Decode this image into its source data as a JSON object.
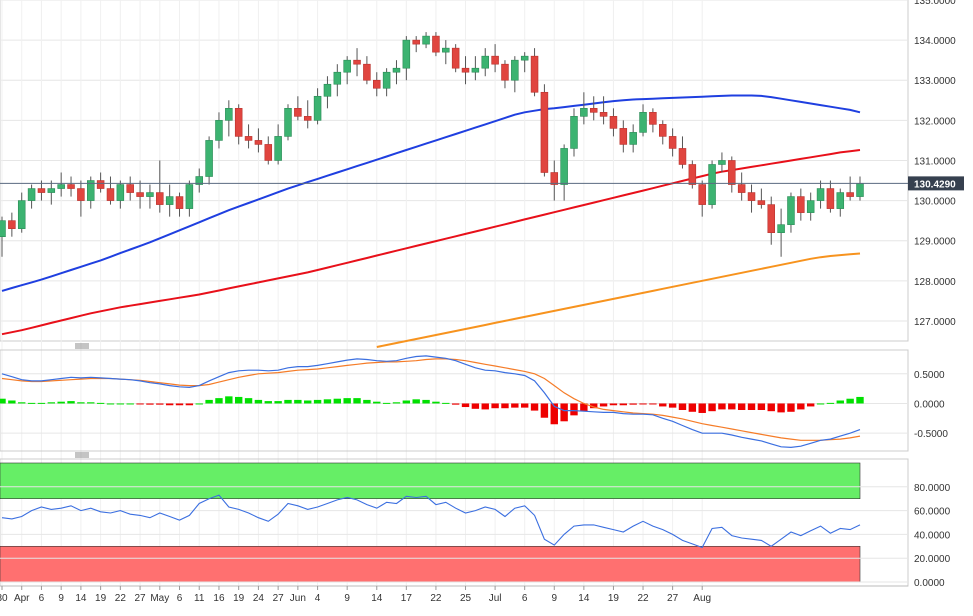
{
  "colors": {
    "bull": "#3cb371",
    "bear": "#e0453f",
    "wick": "#555555",
    "sma50": "#1f3fe0",
    "sma100": "#e8101a",
    "sma200": "#f7931e",
    "macd_line": "#3b6fe0",
    "macd_signal": "#f57c28",
    "hist_pos": "#00e000",
    "hist_neg": "#ee0000",
    "rsi_line": "#3b6fe0",
    "overbought": "#66ee66",
    "oversold": "#ff7070",
    "grid": "#e6e6e6",
    "price_badge": "#36404f"
  },
  "chart_data": [
    {
      "type": "candlestick",
      "name": "price",
      "ylim": [
        126.5,
        135.0
      ],
      "grid": true,
      "y_ticks": [
        "135.0000",
        "134.0000",
        "133.0000",
        "132.0000",
        "131.0000",
        "130.0000",
        "129.0000",
        "128.0000",
        "127.0000"
      ],
      "last_price": 130.429,
      "last_price_label": "130.4290",
      "candles": [
        [
          129.1,
          129.6,
          128.6,
          129.5
        ],
        [
          129.5,
          129.7,
          129.1,
          129.3
        ],
        [
          129.3,
          130.2,
          129.2,
          130.0
        ],
        [
          130.0,
          130.4,
          129.8,
          130.3
        ],
        [
          130.3,
          130.5,
          130.0,
          130.2
        ],
        [
          130.2,
          130.5,
          129.9,
          130.3
        ],
        [
          130.3,
          130.7,
          130.1,
          130.4
        ],
        [
          130.4,
          130.6,
          130.1,
          130.3
        ],
        [
          130.3,
          130.5,
          129.6,
          130.0
        ],
        [
          130.0,
          130.6,
          129.8,
          130.5
        ],
        [
          130.5,
          130.7,
          130.2,
          130.3
        ],
        [
          130.3,
          130.6,
          129.9,
          130.0
        ],
        [
          130.0,
          130.5,
          129.8,
          130.4
        ],
        [
          130.4,
          130.6,
          130.0,
          130.2
        ],
        [
          130.2,
          130.5,
          129.8,
          130.1
        ],
        [
          130.1,
          130.4,
          129.8,
          130.2
        ],
        [
          130.2,
          131.0,
          129.7,
          129.9
        ],
        [
          129.9,
          130.4,
          129.6,
          130.1
        ],
        [
          130.1,
          130.2,
          129.6,
          129.8
        ],
        [
          129.8,
          130.5,
          129.6,
          130.4
        ],
        [
          130.4,
          130.8,
          130.2,
          130.6
        ],
        [
          130.6,
          131.6,
          130.4,
          131.5
        ],
        [
          131.5,
          132.2,
          131.3,
          132.0
        ],
        [
          132.0,
          132.5,
          131.6,
          132.3
        ],
        [
          132.3,
          132.4,
          131.4,
          131.6
        ],
        [
          131.6,
          131.9,
          131.3,
          131.5
        ],
        [
          131.5,
          131.8,
          131.2,
          131.4
        ],
        [
          131.4,
          131.6,
          130.9,
          131.0
        ],
        [
          131.0,
          131.9,
          130.9,
          131.6
        ],
        [
          131.6,
          132.4,
          131.5,
          132.3
        ],
        [
          132.3,
          132.6,
          132.0,
          132.1
        ],
        [
          132.1,
          132.5,
          131.8,
          132.0
        ],
        [
          132.0,
          132.8,
          131.9,
          132.6
        ],
        [
          132.6,
          133.1,
          132.3,
          132.9
        ],
        [
          132.9,
          133.4,
          132.6,
          133.2
        ],
        [
          133.2,
          133.6,
          132.9,
          133.5
        ],
        [
          133.5,
          133.8,
          133.1,
          133.4
        ],
        [
          133.4,
          133.6,
          132.9,
          133.0
        ],
        [
          133.0,
          133.2,
          132.6,
          132.8
        ],
        [
          132.8,
          133.3,
          132.6,
          133.2
        ],
        [
          133.2,
          133.5,
          132.9,
          133.3
        ],
        [
          133.3,
          134.1,
          133.0,
          134.0
        ],
        [
          134.0,
          134.1,
          133.7,
          133.9
        ],
        [
          133.9,
          134.2,
          133.8,
          134.1
        ],
        [
          134.1,
          134.2,
          133.6,
          133.7
        ],
        [
          133.7,
          134.0,
          133.4,
          133.8
        ],
        [
          133.8,
          133.9,
          133.2,
          133.3
        ],
        [
          133.3,
          133.6,
          132.9,
          133.2
        ],
        [
          133.2,
          133.6,
          133.0,
          133.3
        ],
        [
          133.3,
          133.8,
          133.1,
          133.6
        ],
        [
          133.6,
          133.9,
          133.2,
          133.4
        ],
        [
          133.4,
          133.5,
          132.8,
          133.0
        ],
        [
          133.0,
          133.6,
          132.7,
          133.5
        ],
        [
          133.5,
          133.7,
          133.2,
          133.6
        ],
        [
          133.6,
          133.8,
          132.6,
          132.7
        ],
        [
          132.7,
          132.9,
          130.6,
          130.7
        ],
        [
          130.7,
          131.0,
          130.0,
          130.4
        ],
        [
          130.4,
          131.4,
          130.0,
          131.3
        ],
        [
          131.3,
          132.3,
          131.1,
          132.1
        ],
        [
          132.1,
          132.7,
          131.9,
          132.3
        ],
        [
          132.3,
          132.6,
          132.0,
          132.2
        ],
        [
          132.2,
          132.6,
          131.9,
          132.1
        ],
        [
          132.1,
          132.3,
          131.6,
          131.8
        ],
        [
          131.8,
          132.0,
          131.2,
          131.4
        ],
        [
          131.4,
          131.9,
          131.2,
          131.7
        ],
        [
          131.7,
          132.4,
          131.6,
          132.2
        ],
        [
          132.2,
          132.3,
          131.7,
          131.9
        ],
        [
          131.9,
          132.0,
          131.4,
          131.6
        ],
        [
          131.6,
          131.8,
          131.1,
          131.3
        ],
        [
          131.3,
          131.6,
          130.8,
          130.9
        ],
        [
          130.9,
          131.0,
          130.3,
          130.4
        ],
        [
          130.4,
          130.5,
          129.6,
          129.9
        ],
        [
          129.9,
          131.0,
          129.8,
          130.9
        ],
        [
          130.9,
          131.2,
          130.7,
          131.0
        ],
        [
          131.0,
          131.1,
          130.2,
          130.4
        ],
        [
          130.4,
          130.7,
          130.0,
          130.2
        ],
        [
          130.2,
          130.4,
          129.7,
          130.0
        ],
        [
          130.0,
          130.3,
          129.8,
          129.9
        ],
        [
          129.9,
          130.1,
          128.9,
          129.2
        ],
        [
          129.2,
          129.8,
          128.6,
          129.4
        ],
        [
          129.4,
          130.2,
          129.2,
          130.1
        ],
        [
          130.1,
          130.3,
          129.5,
          129.7
        ],
        [
          129.7,
          130.2,
          129.5,
          130.0
        ],
        [
          130.0,
          130.5,
          129.8,
          130.3
        ],
        [
          130.3,
          130.5,
          129.7,
          129.8
        ],
        [
          129.8,
          130.3,
          129.6,
          130.2
        ],
        [
          130.2,
          130.6,
          130.0,
          130.1
        ],
        [
          130.1,
          130.6,
          130.0,
          130.43
        ]
      ],
      "sma50": [
        127.75,
        127.82,
        127.89,
        127.96,
        128.03,
        128.11,
        128.19,
        128.27,
        128.35,
        128.43,
        128.51,
        128.6,
        128.69,
        128.78,
        128.87,
        128.96,
        129.06,
        129.16,
        129.26,
        129.36,
        129.46,
        129.56,
        129.66,
        129.76,
        129.85,
        129.94,
        130.03,
        130.12,
        130.21,
        130.3,
        130.38,
        130.46,
        130.54,
        130.62,
        130.7,
        130.78,
        130.86,
        130.94,
        131.02,
        131.1,
        131.18,
        131.26,
        131.34,
        131.42,
        131.5,
        131.58,
        131.66,
        131.74,
        131.82,
        131.9,
        131.98,
        132.06,
        132.14,
        132.2,
        132.24,
        132.28,
        132.3,
        132.33,
        132.36,
        132.39,
        132.42,
        132.45,
        132.48,
        132.5,
        132.52,
        132.53,
        132.54,
        132.55,
        132.56,
        132.57,
        132.58,
        132.59,
        132.6,
        132.61,
        132.62,
        132.62,
        132.62,
        132.61,
        132.58,
        132.54,
        132.5,
        132.46,
        132.42,
        132.38,
        132.34,
        132.3,
        132.26,
        132.2
      ],
      "sma100": [
        126.67,
        126.72,
        126.77,
        126.83,
        126.89,
        126.95,
        127.01,
        127.07,
        127.13,
        127.19,
        127.24,
        127.29,
        127.34,
        127.38,
        127.42,
        127.46,
        127.5,
        127.54,
        127.58,
        127.62,
        127.66,
        127.71,
        127.76,
        127.81,
        127.86,
        127.91,
        127.96,
        128.01,
        128.06,
        128.11,
        128.16,
        128.21,
        128.27,
        128.33,
        128.39,
        128.45,
        128.51,
        128.57,
        128.63,
        128.69,
        128.75,
        128.81,
        128.87,
        128.93,
        128.99,
        129.05,
        129.11,
        129.17,
        129.23,
        129.29,
        129.35,
        129.41,
        129.47,
        129.53,
        129.59,
        129.65,
        129.71,
        129.77,
        129.83,
        129.89,
        129.95,
        130.01,
        130.07,
        130.13,
        130.19,
        130.25,
        130.31,
        130.37,
        130.43,
        130.49,
        130.55,
        130.61,
        130.67,
        130.72,
        130.76,
        130.8,
        130.84,
        130.88,
        130.92,
        130.96,
        131.0,
        131.04,
        131.08,
        131.12,
        131.16,
        131.2,
        131.23,
        131.26
      ],
      "sma200": [
        null,
        null,
        null,
        null,
        null,
        null,
        null,
        null,
        null,
        null,
        null,
        null,
        null,
        null,
        null,
        null,
        null,
        null,
        null,
        null,
        null,
        null,
        null,
        null,
        null,
        null,
        null,
        null,
        null,
        null,
        null,
        null,
        null,
        null,
        null,
        null,
        null,
        null,
        126.35,
        126.4,
        126.45,
        126.5,
        126.55,
        126.6,
        126.65,
        126.7,
        126.75,
        126.8,
        126.85,
        126.9,
        126.95,
        127.0,
        127.05,
        127.1,
        127.15,
        127.2,
        127.25,
        127.3,
        127.35,
        127.4,
        127.45,
        127.5,
        127.55,
        127.6,
        127.65,
        127.7,
        127.75,
        127.8,
        127.85,
        127.9,
        127.95,
        128.0,
        128.05,
        128.1,
        128.15,
        128.2,
        128.25,
        128.3,
        128.35,
        128.4,
        128.45,
        128.5,
        128.55,
        128.59,
        128.62,
        128.64,
        128.66,
        128.68
      ]
    },
    {
      "type": "macd",
      "ylim": [
        -0.8,
        0.9
      ],
      "y_ticks": [
        "0.5000",
        "0.0000",
        "-0.5000"
      ],
      "macd": [
        0.5,
        0.45,
        0.4,
        0.38,
        0.38,
        0.4,
        0.42,
        0.44,
        0.43,
        0.44,
        0.43,
        0.42,
        0.41,
        0.4,
        0.38,
        0.35,
        0.33,
        0.3,
        0.28,
        0.27,
        0.3,
        0.38,
        0.45,
        0.52,
        0.55,
        0.56,
        0.56,
        0.55,
        0.56,
        0.6,
        0.62,
        0.62,
        0.64,
        0.67,
        0.7,
        0.73,
        0.75,
        0.74,
        0.72,
        0.71,
        0.72,
        0.76,
        0.79,
        0.8,
        0.78,
        0.76,
        0.72,
        0.66,
        0.6,
        0.56,
        0.55,
        0.52,
        0.5,
        0.47,
        0.38,
        0.18,
        -0.05,
        -0.12,
        -0.12,
        -0.13,
        -0.14,
        -0.15,
        -0.15,
        -0.17,
        -0.18,
        -0.18,
        -0.19,
        -0.25,
        -0.3,
        -0.37,
        -0.44,
        -0.5,
        -0.5,
        -0.5,
        -0.53,
        -0.57,
        -0.6,
        -0.63,
        -0.68,
        -0.73,
        -0.74,
        -0.72,
        -0.67,
        -0.62,
        -0.6,
        -0.55,
        -0.5,
        -0.44
      ],
      "signal": [
        0.42,
        0.4,
        0.38,
        0.37,
        0.37,
        0.38,
        0.39,
        0.4,
        0.41,
        0.42,
        0.42,
        0.42,
        0.41,
        0.4,
        0.39,
        0.37,
        0.35,
        0.33,
        0.31,
        0.3,
        0.3,
        0.32,
        0.36,
        0.4,
        0.44,
        0.47,
        0.5,
        0.51,
        0.52,
        0.54,
        0.56,
        0.57,
        0.58,
        0.6,
        0.62,
        0.64,
        0.66,
        0.68,
        0.69,
        0.7,
        0.7,
        0.71,
        0.72,
        0.74,
        0.75,
        0.75,
        0.74,
        0.72,
        0.69,
        0.66,
        0.63,
        0.6,
        0.57,
        0.54,
        0.5,
        0.42,
        0.3,
        0.18,
        0.08,
        0.0,
        -0.06,
        -0.1,
        -0.12,
        -0.14,
        -0.16,
        -0.17,
        -0.18,
        -0.2,
        -0.23,
        -0.26,
        -0.3,
        -0.34,
        -0.37,
        -0.4,
        -0.43,
        -0.46,
        -0.49,
        -0.52,
        -0.55,
        -0.58,
        -0.6,
        -0.62,
        -0.62,
        -0.62,
        -0.61,
        -0.6,
        -0.58,
        -0.55
      ]
    },
    {
      "type": "rsi",
      "ylim": [
        0,
        100
      ],
      "y_ticks": [
        "80.0000",
        "60.0000",
        "40.0000",
        "20.0000",
        "0.0000"
      ],
      "overbought_band": [
        70,
        100
      ],
      "oversold_band": [
        0,
        30
      ],
      "values": [
        54,
        53,
        55,
        60,
        63,
        61,
        62,
        64,
        60,
        62,
        59,
        58,
        60,
        57,
        56,
        54,
        58,
        55,
        52,
        56,
        66,
        70,
        73,
        63,
        61,
        58,
        54,
        51,
        57,
        66,
        64,
        61,
        63,
        66,
        69,
        71,
        69,
        65,
        62,
        67,
        66,
        72,
        71,
        72,
        65,
        67,
        62,
        58,
        60,
        63,
        61,
        55,
        62,
        64,
        56,
        36,
        31,
        40,
        47,
        48,
        48,
        46,
        44,
        42,
        47,
        51,
        47,
        44,
        40,
        35,
        32,
        29,
        45,
        46,
        39,
        37,
        36,
        35,
        30,
        36,
        42,
        39,
        43,
        47,
        41,
        45,
        44,
        48
      ]
    }
  ],
  "x_axis": {
    "labels": [
      "30",
      "Apr",
      "6",
      "9",
      "14",
      "19",
      "22",
      "27",
      "May",
      "6",
      "11",
      "16",
      "19",
      "24",
      "27",
      "Jun",
      "4",
      "9",
      "14",
      "17",
      "22",
      "25",
      "Jul",
      "6",
      "9",
      "14",
      "19",
      "22",
      "27",
      "Aug"
    ],
    "label_index": [
      0,
      2,
      4,
      6,
      8,
      10,
      12,
      14,
      16,
      18,
      20,
      22,
      24,
      26,
      28,
      30,
      32,
      35,
      38,
      41,
      44,
      47,
      50,
      53,
      56,
      59,
      62,
      65,
      68,
      71
    ]
  }
}
